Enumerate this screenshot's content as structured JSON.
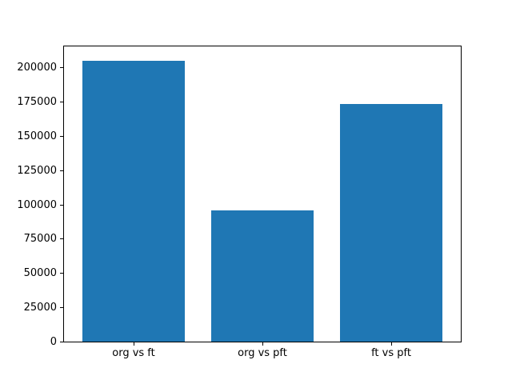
{
  "chart_data": {
    "type": "bar",
    "title": "",
    "xlabel": "",
    "ylabel": "",
    "categories": [
      "org vs ft",
      "org vs pft",
      "ft vs pft"
    ],
    "values": [
      205000,
      95500,
      173000
    ],
    "ylim": [
      0,
      215250
    ],
    "yticks": [
      0,
      25000,
      50000,
      75000,
      100000,
      125000,
      150000,
      175000,
      200000
    ],
    "ytick_labels": [
      "0",
      "25000",
      "50000",
      "75000",
      "100000",
      "125000",
      "150000",
      "175000",
      "200000"
    ],
    "bar_color": "#1f77b4",
    "axis_color": "#000000",
    "background_color": "#ffffff",
    "grid": false,
    "legend": false
  }
}
